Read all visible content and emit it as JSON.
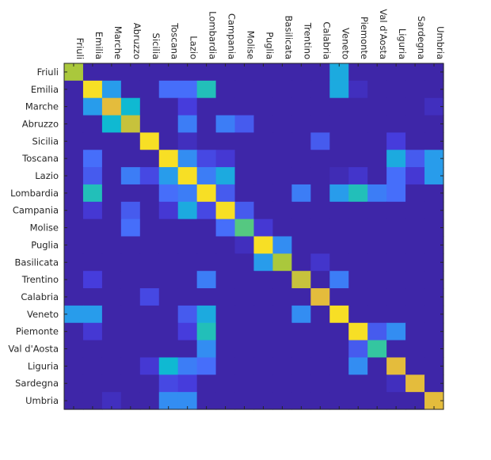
{
  "chart_data": {
    "type": "heatmap",
    "title": "",
    "xlabel": "",
    "ylabel": "",
    "x_tick_labels": [
      "Friuli",
      "Emilia",
      "Marche",
      "Abruzzo",
      "Sicilia",
      "Toscana",
      "Lazio",
      "Lombardia",
      "Campania",
      "Molise",
      "Puglia",
      "Basilicata",
      "Trentino",
      "Calabria",
      "Veneto",
      "Piemonte",
      "Val d'Aosta",
      "Liguria",
      "Sardegna",
      "Umbria"
    ],
    "y_tick_labels": [
      "Friuli",
      "Emilia",
      "Marche",
      "Abruzzo",
      "Sicilia",
      "Toscana",
      "Lazio",
      "Lombardia",
      "Campania",
      "Molise",
      "Puglia",
      "Basilicata",
      "Trentino",
      "Calabria",
      "Veneto",
      "Piemonte",
      "Val d'Aosta",
      "Liguria",
      "Sardegna",
      "Umbria"
    ],
    "colormap": "parula",
    "value_range": [
      0,
      1
    ],
    "matrix": [
      [
        0.75,
        0,
        0,
        0,
        0,
        0,
        0,
        0,
        0,
        0,
        0,
        0,
        0,
        0,
        0.45,
        0,
        0,
        0,
        0,
        0
      ],
      [
        0,
        0.95,
        0.4,
        0,
        0,
        0.25,
        0.25,
        0.55,
        0,
        0,
        0,
        0,
        0,
        0,
        0.45,
        0.05,
        0,
        0,
        0,
        0
      ],
      [
        0,
        0.4,
        0.85,
        0.5,
        0,
        0,
        0.12,
        0,
        0,
        0,
        0,
        0,
        0,
        0,
        0,
        0,
        0,
        0,
        0,
        0.05
      ],
      [
        0,
        0,
        0.5,
        0.8,
        0,
        0,
        0.3,
        0,
        0.3,
        0.2,
        0,
        0,
        0,
        0,
        0,
        0,
        0,
        0,
        0,
        0
      ],
      [
        0,
        0,
        0,
        0,
        0.95,
        0,
        0.05,
        0,
        0,
        0,
        0,
        0,
        0,
        0.2,
        0,
        0,
        0,
        0.12,
        0,
        0
      ],
      [
        0,
        0.25,
        0,
        0,
        0,
        0.95,
        0.35,
        0.15,
        0.1,
        0,
        0,
        0,
        0,
        0,
        0,
        0,
        0,
        0.45,
        0.2,
        0.4
      ],
      [
        0,
        0.2,
        0,
        0.3,
        0.15,
        0.4,
        0.95,
        0.3,
        0.45,
        0,
        0,
        0,
        0,
        0,
        0.03,
        0.08,
        0,
        0.25,
        0.1,
        0.4
      ],
      [
        0,
        0.55,
        0,
        0,
        0,
        0.25,
        0.3,
        0.95,
        0.2,
        0,
        0,
        0,
        0.3,
        0,
        0.4,
        0.55,
        0.3,
        0.25,
        0,
        0
      ],
      [
        0,
        0.1,
        0,
        0.2,
        0,
        0.1,
        0.45,
        0.15,
        0.95,
        0.2,
        0,
        0,
        0,
        0,
        0,
        0,
        0,
        0,
        0,
        0
      ],
      [
        0,
        0,
        0,
        0.25,
        0,
        0,
        0,
        0,
        0.25,
        0.65,
        0.1,
        0,
        0,
        0,
        0,
        0,
        0,
        0,
        0,
        0
      ],
      [
        0,
        0,
        0,
        0,
        0,
        0,
        0,
        0,
        0,
        0.05,
        0.95,
        0.35,
        0,
        0,
        0,
        0,
        0,
        0,
        0,
        0
      ],
      [
        0,
        0,
        0,
        0,
        0,
        0,
        0,
        0,
        0,
        0,
        0.4,
        0.75,
        0,
        0.08,
        0,
        0,
        0,
        0,
        0,
        0
      ],
      [
        0,
        0.12,
        0,
        0,
        0,
        0,
        0,
        0.3,
        0,
        0,
        0,
        0,
        0.8,
        0,
        0.3,
        0,
        0,
        0,
        0,
        0
      ],
      [
        0,
        0,
        0,
        0,
        0.15,
        0,
        0,
        0,
        0,
        0,
        0,
        0,
        0,
        0.85,
        0,
        0,
        0,
        0,
        0,
        0
      ],
      [
        0.4,
        0.4,
        0,
        0,
        0,
        0,
        0.2,
        0.45,
        0,
        0,
        0,
        0,
        0.35,
        0,
        0.95,
        0,
        0,
        0,
        0,
        0
      ],
      [
        0,
        0.1,
        0,
        0,
        0,
        0,
        0.12,
        0.55,
        0,
        0,
        0,
        0,
        0,
        0,
        0,
        0.95,
        0.2,
        0.35,
        0,
        0
      ],
      [
        0,
        0,
        0,
        0,
        0,
        0,
        0,
        0.35,
        0,
        0,
        0,
        0,
        0,
        0,
        0,
        0.2,
        0.6,
        0,
        0,
        0
      ],
      [
        0,
        0,
        0,
        0,
        0.1,
        0.5,
        0.3,
        0.25,
        0,
        0,
        0,
        0,
        0,
        0,
        0,
        0.35,
        0,
        0.85,
        0,
        0
      ],
      [
        0,
        0,
        0,
        0,
        0,
        0.15,
        0.12,
        0,
        0,
        0,
        0,
        0,
        0,
        0,
        0,
        0,
        0,
        0.05,
        0.85,
        0
      ],
      [
        0,
        0,
        0.05,
        0,
        0,
        0.35,
        0.35,
        0,
        0,
        0,
        0,
        0,
        0,
        0,
        0,
        0,
        0,
        0,
        0,
        0.85
      ]
    ]
  }
}
